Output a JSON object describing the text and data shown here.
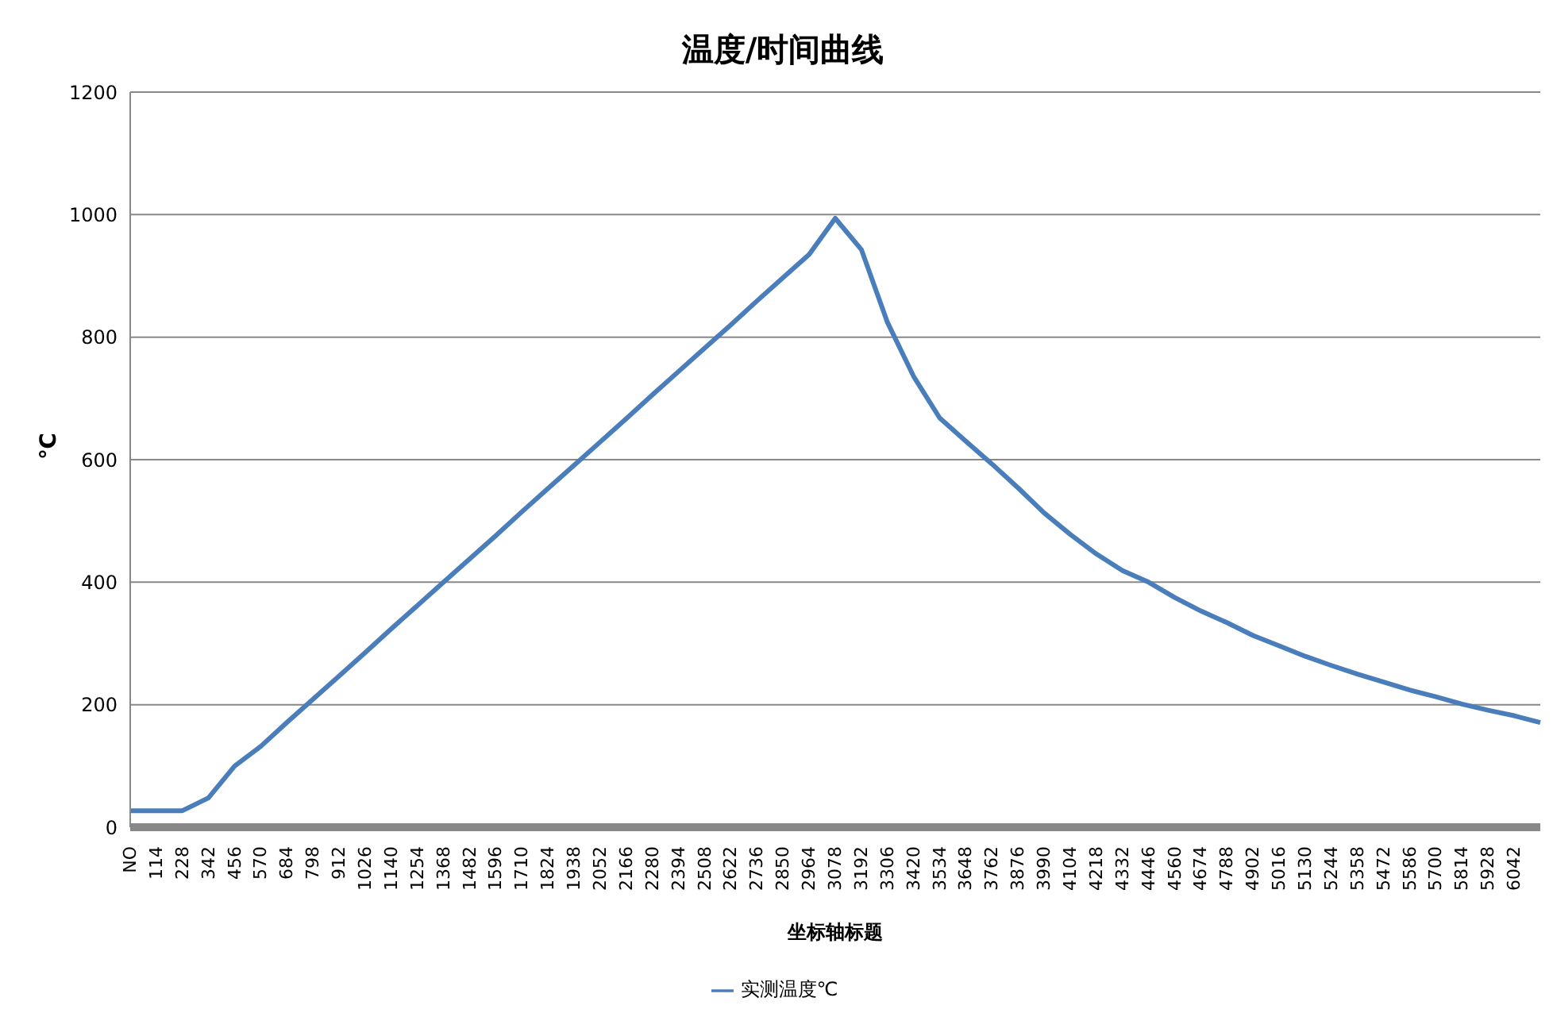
{
  "chart_data": {
    "type": "line",
    "title": "温度/时间曲线",
    "xlabel": "坐标轴标题",
    "ylabel": "℃",
    "categories": [
      "NO",
      "114",
      "228",
      "342",
      "456",
      "570",
      "684",
      "798",
      "912",
      "1026",
      "1140",
      "1254",
      "1368",
      "1482",
      "1596",
      "1710",
      "1824",
      "1938",
      "2052",
      "2166",
      "2280",
      "2394",
      "2508",
      "2622",
      "2736",
      "2850",
      "2964",
      "3078",
      "3192",
      "3306",
      "3420",
      "3534",
      "3648",
      "3762",
      "3876",
      "3990",
      "4104",
      "4218",
      "4332",
      "4446",
      "4560",
      "4674",
      "4788",
      "4902",
      "5016",
      "5130",
      "5244",
      "5358",
      "5472",
      "5586",
      "5700",
      "5814",
      "5928",
      "6042",
      null
    ],
    "series": [
      {
        "name": "实测温度℃",
        "color": "#4a7ebb",
        "values": [
          27,
          27,
          27,
          48,
          100,
          132,
          171,
          209,
          247,
          285,
          324,
          362,
          400,
          438,
          476,
          515,
          553,
          591,
          629,
          667,
          706,
          744,
          782,
          820,
          859,
          897,
          935,
          994,
          943,
          824,
          736,
          668,
          630,
          593,
          554,
          513,
          478,
          446,
          419,
          400,
          375,
          353,
          334,
          313,
          296,
          279,
          264,
          250,
          237,
          224,
          213,
          201,
          191,
          182,
          171
        ]
      }
    ],
    "ylim": [
      0,
      1200
    ],
    "yticks": [
      0,
      200,
      400,
      600,
      800,
      1000,
      1200
    ],
    "grid": "y",
    "legend": "bottom",
    "marker": "none",
    "line_style": "solid"
  }
}
